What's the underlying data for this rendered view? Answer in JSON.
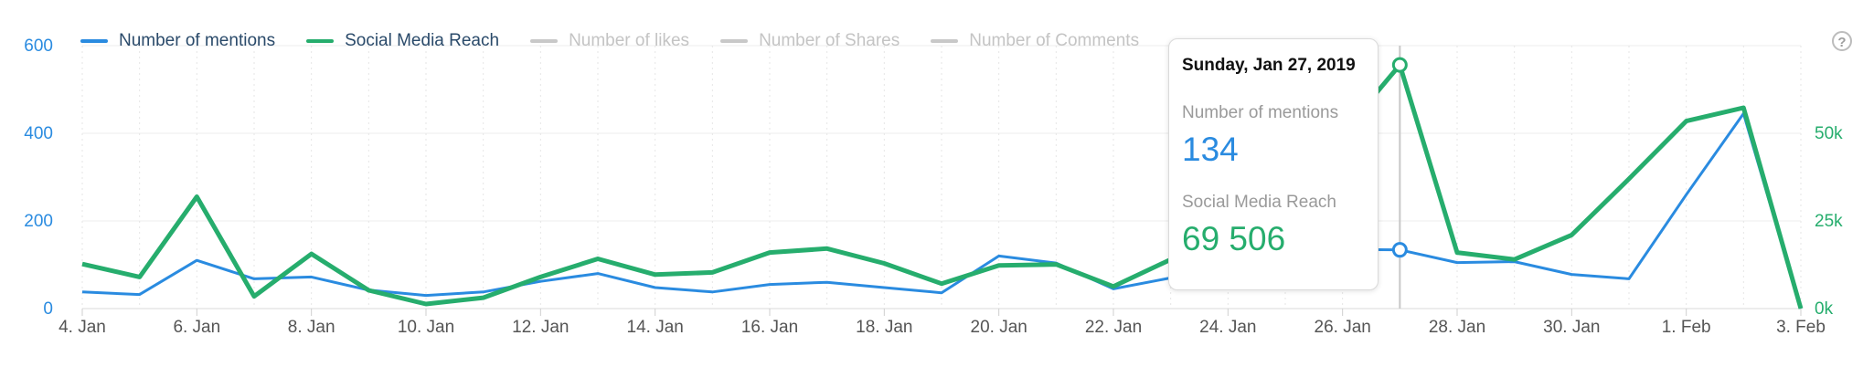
{
  "legend": [
    {
      "label": "Number of mentions",
      "color": "#2a8be0",
      "active": true
    },
    {
      "label": "Social Media Reach",
      "color": "#26ad6d",
      "active": true
    },
    {
      "label": "Number of likes",
      "color": "#c8c8c8",
      "active": false
    },
    {
      "label": "Number of Shares",
      "color": "#c8c8c8",
      "active": false
    },
    {
      "label": "Number of Comments",
      "color": "#c8c8c8",
      "active": false
    }
  ],
  "help_icon": {
    "glyph": "?",
    "name": "help-icon"
  },
  "tooltip": {
    "date": "Sunday, Jan 27, 2019",
    "items": [
      {
        "label": "Number of mentions",
        "value": "134",
        "color": "#2a8be0"
      },
      {
        "label": "Social Media Reach",
        "value": "69 506",
        "color": "#26ad6d"
      }
    ]
  },
  "chart_data": {
    "type": "line",
    "x": [
      "2019-01-04",
      "2019-01-05",
      "2019-01-06",
      "2019-01-07",
      "2019-01-08",
      "2019-01-09",
      "2019-01-10",
      "2019-01-11",
      "2019-01-12",
      "2019-01-13",
      "2019-01-14",
      "2019-01-15",
      "2019-01-16",
      "2019-01-17",
      "2019-01-18",
      "2019-01-19",
      "2019-01-20",
      "2019-01-21",
      "2019-01-22",
      "2019-01-23",
      "2019-01-24",
      "2019-01-25",
      "2019-01-26",
      "2019-01-27",
      "2019-01-28",
      "2019-01-29",
      "2019-01-30",
      "2019-01-31",
      "2019-02-01",
      "2019-02-02",
      "2019-02-03"
    ],
    "x_tick_labels": [
      "4. Jan",
      "6. Jan",
      "8. Jan",
      "10. Jan",
      "12. Jan",
      "14. Jan",
      "16. Jan",
      "18. Jan",
      "20. Jan",
      "22. Jan",
      "24. Jan",
      "26. Jan",
      "28. Jan",
      "30. Jan",
      "1. Feb",
      "3. Feb"
    ],
    "y_left": {
      "ticks": [
        "0",
        "200",
        "400",
        "600"
      ],
      "range": [
        0,
        600
      ],
      "color": "#2a8be0"
    },
    "y_right": {
      "ticks": [
        "0k",
        "25k",
        "50k"
      ],
      "range": [
        0,
        75000
      ],
      "color": "#26ad6d"
    },
    "highlight_date": "2019-01-27",
    "series": [
      {
        "name": "Number of mentions",
        "axis": "left",
        "color": "#2a8be0",
        "values": [
          38,
          32,
          110,
          68,
          72,
          42,
          30,
          38,
          62,
          80,
          48,
          38,
          55,
          60,
          48,
          36,
          120,
          104,
          45,
          70,
          100,
          130,
          135,
          134,
          105,
          107,
          78,
          68,
          260,
          445,
          0
        ]
      },
      {
        "name": "Social Media Reach",
        "axis": "right",
        "color": "#26ad6d",
        "values": [
          12700,
          9000,
          31900,
          3500,
          15600,
          5200,
          1300,
          3100,
          9000,
          14200,
          9700,
          10300,
          16000,
          17100,
          12900,
          7100,
          12300,
          12600,
          6300,
          14000,
          30000,
          45000,
          50000,
          69506,
          16000,
          14000,
          21000,
          37000,
          53500,
          57300,
          0
        ]
      }
    ],
    "grid": true
  }
}
